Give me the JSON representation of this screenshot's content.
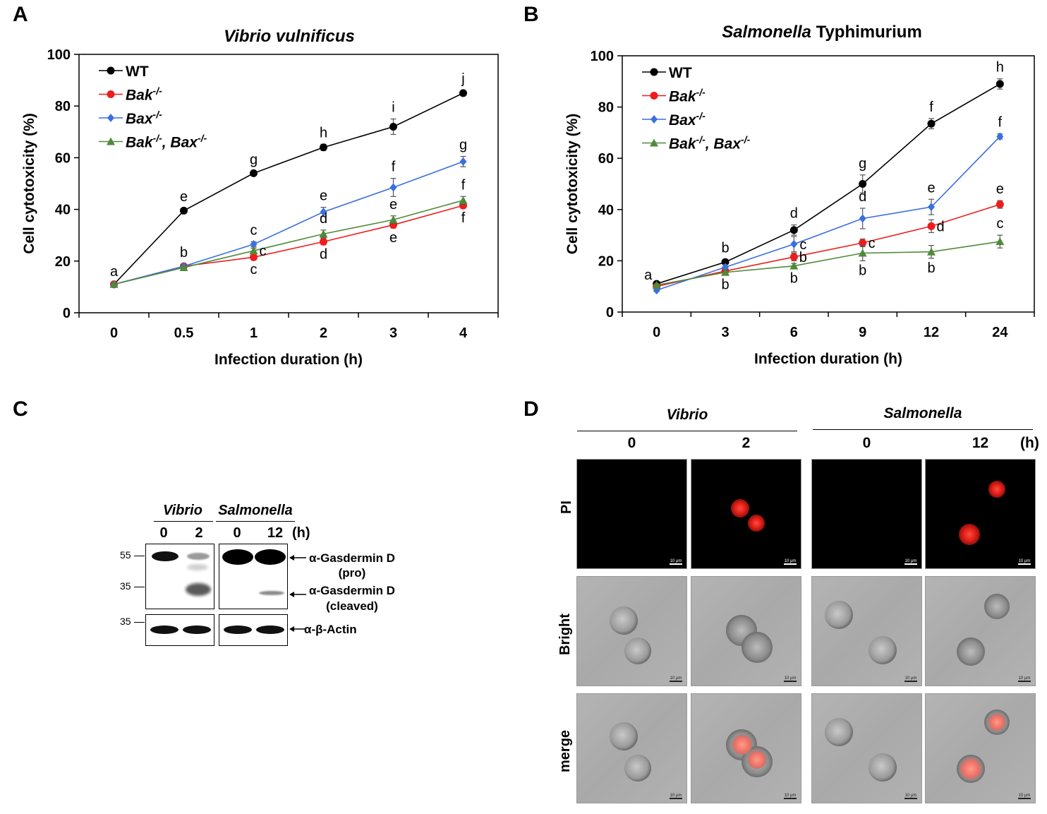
{
  "panels": {
    "A": "A",
    "B": "B",
    "C": "C",
    "D": "D"
  },
  "chart_data": [
    {
      "type": "line",
      "title": "Vibrio vulnificus",
      "xlabel": "Infection duration (h)",
      "ylabel": "Cell cytotoxicity (%)",
      "categories": [
        "0",
        "0.5",
        "1",
        "2",
        "3",
        "4"
      ],
      "ylim": [
        0,
        100
      ],
      "yticks": [
        "0",
        "20",
        "40",
        "60",
        "80",
        "100"
      ],
      "series": [
        {
          "name": "WT",
          "color": "#000000",
          "marker": "circle",
          "values": [
            11,
            39.5,
            54,
            64,
            72,
            85
          ],
          "errors": [
            0.5,
            1,
            0.8,
            1.2,
            3,
            1
          ],
          "letters": [
            "a",
            "e",
            "g",
            "h",
            "i",
            "j"
          ],
          "letter_pos": [
            "above",
            "above",
            "above",
            "above",
            "above",
            "above"
          ]
        },
        {
          "name": "Bak-/-",
          "color": "#ee1c1c",
          "marker": "circle",
          "values": [
            11,
            18,
            21.5,
            27.5,
            34,
            41.5
          ],
          "errors": [
            0.5,
            0.8,
            1,
            1.2,
            1.2,
            1
          ],
          "letters": [
            "a",
            "b",
            "c",
            "d",
            "e",
            "f"
          ],
          "letter_pos": [
            "none",
            "above",
            "below",
            "below",
            "below",
            "below"
          ]
        },
        {
          "name": "Bax-/-",
          "color": "#3a6fe0",
          "marker": "diamond",
          "values": [
            11,
            18,
            26.5,
            39,
            48.5,
            58.5
          ],
          "errors": [
            0.5,
            0.8,
            1,
            1.8,
            3.5,
            2
          ],
          "letters": [
            "a",
            "b",
            "c",
            "e",
            "f",
            "g"
          ],
          "letter_pos": [
            "none",
            "none",
            "above",
            "above",
            "above",
            "above"
          ]
        },
        {
          "name": "Bak-/-, Bax-/-",
          "color": "#4e8a3a",
          "marker": "triangle",
          "values": [
            11,
            17.5,
            24,
            30.5,
            36,
            43.5
          ],
          "errors": [
            0.5,
            0.8,
            1,
            1.5,
            1.5,
            1.5
          ],
          "letters": [
            "a",
            "b",
            "c",
            "d",
            "e",
            "f"
          ],
          "letter_pos": [
            "none",
            "none",
            "right",
            "above",
            "above",
            "above"
          ]
        }
      ]
    },
    {
      "type": "line",
      "title": "Salmonella Typhimurium",
      "xlabel": "Infection duration (h)",
      "ylabel": "Cell cytotoxicity (%)",
      "categories": [
        "0",
        "3",
        "6",
        "9",
        "12",
        "24"
      ],
      "ylim": [
        0,
        100
      ],
      "yticks": [
        "0",
        "20",
        "40",
        "60",
        "80",
        "100"
      ],
      "series": [
        {
          "name": "WT",
          "color": "#000000",
          "marker": "circle",
          "values": [
            11,
            19.5,
            32,
            50,
            73.5,
            89
          ],
          "errors": [
            0.5,
            1,
            2,
            3.5,
            2,
            2
          ],
          "letters": [
            "a",
            "b",
            "d",
            "g",
            "f",
            "h"
          ],
          "letter_pos": [
            "left",
            "above",
            "above",
            "above",
            "above",
            "above"
          ]
        },
        {
          "name": "Bak-/-",
          "color": "#ee1c1c",
          "marker": "circle",
          "values": [
            10,
            16,
            21.5,
            27,
            33.5,
            42
          ],
          "errors": [
            0.5,
            1,
            1.5,
            1.5,
            2.5,
            1.5
          ],
          "letters": [
            "a",
            "b",
            "b",
            "c",
            "d",
            "e"
          ],
          "letter_pos": [
            "none",
            "none",
            "right",
            "right",
            "right",
            "above"
          ]
        },
        {
          "name": "Bax-/-",
          "color": "#3a6fe0",
          "marker": "diamond",
          "values": [
            8.5,
            17.5,
            26.5,
            36.5,
            41,
            68.5
          ],
          "errors": [
            0.5,
            1,
            3,
            4,
            3,
            1
          ],
          "letters": [
            "a",
            "b",
            "c",
            "d",
            "e",
            "f"
          ],
          "letter_pos": [
            "none",
            "none",
            "right",
            "above",
            "above",
            "above"
          ]
        },
        {
          "name": "Bak-/-, Bax-/-",
          "color": "#4e8a3a",
          "marker": "triangle",
          "values": [
            10.5,
            15.5,
            18,
            23,
            23.5,
            27.5
          ],
          "errors": [
            0.5,
            1,
            1,
            3,
            2.5,
            2.5
          ],
          "letters": [
            "a",
            "b",
            "b",
            "b",
            "b",
            "c"
          ],
          "letter_pos": [
            "none",
            "below",
            "below",
            "below",
            "below",
            "above"
          ]
        }
      ]
    }
  ],
  "legend": [
    {
      "base": "WT",
      "sup": "",
      "italic": false
    },
    {
      "base": "Bak",
      "sup": "-/-",
      "italic": true
    },
    {
      "base": "Bax",
      "sup": "-/-",
      "italic": true
    },
    {
      "base": "Bak",
      "sup": "-/-",
      "base2": ", Bax",
      "sup2": "-/-",
      "italic": true
    }
  ],
  "titleA": {
    "italic": "Vibrio vulnificus",
    "plain": ""
  },
  "titleB": {
    "italic": "Salmonella",
    "plain": " Typhimurium"
  },
  "blot": {
    "group1": "Vibrio",
    "group2": "Salmonella",
    "lanes": [
      "0",
      "2",
      "0",
      "12"
    ],
    "unit": "(h)",
    "markers": [
      "55",
      "35",
      "35"
    ],
    "labels": {
      "gsdmd_pro_1": "α-Gasdermin D",
      "gsdmd_pro_2": "(pro)",
      "gsdmd_cl_1": "α-Gasdermin D",
      "gsdmd_cl_2": "(cleaved)",
      "actin": "α-β-Actin"
    }
  },
  "micro": {
    "group1": "Vibrio",
    "group2": "Salmonella",
    "times": [
      "0",
      "2",
      "0",
      "12"
    ],
    "unit": "(h)",
    "rows": [
      "PI",
      "Bright",
      "merge"
    ],
    "scale": "10 μm"
  }
}
